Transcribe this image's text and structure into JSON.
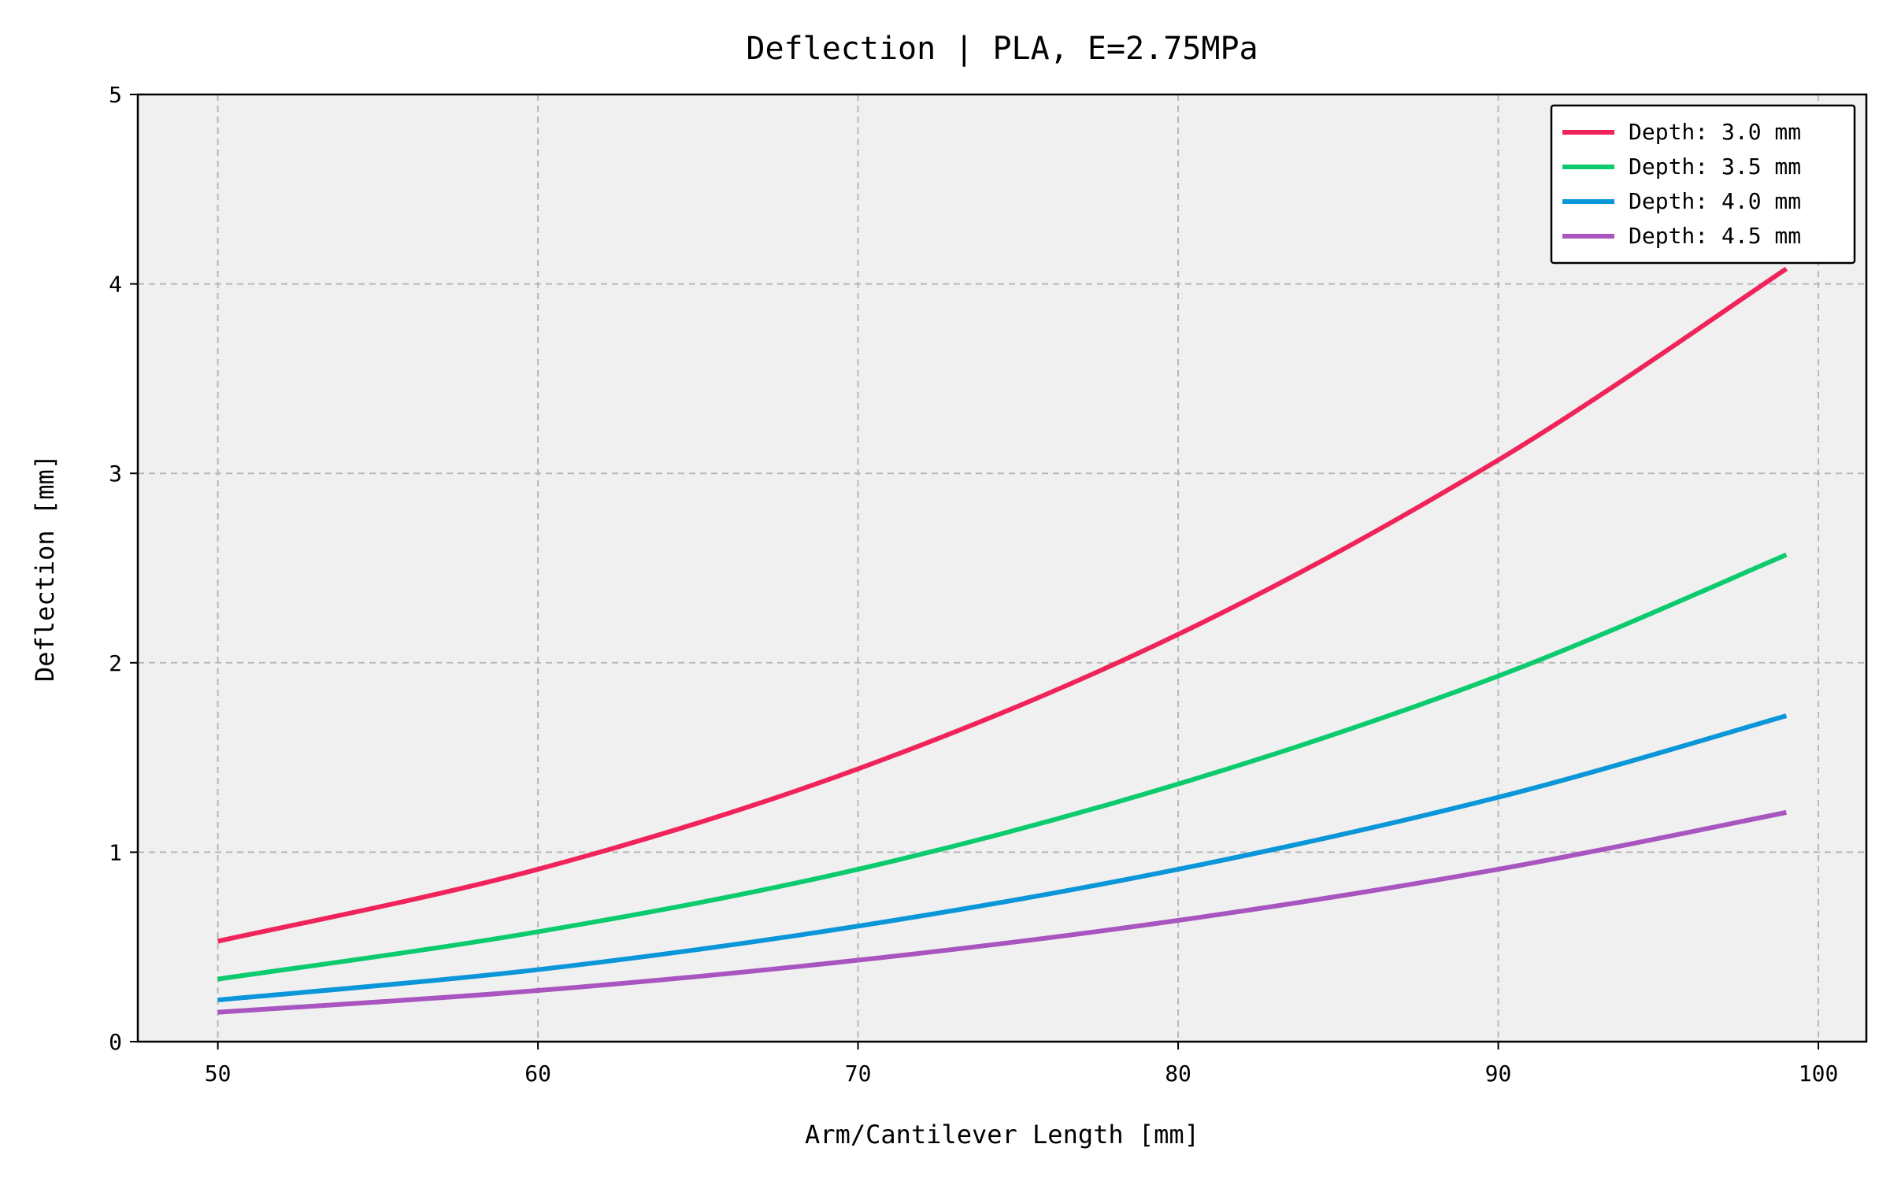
{
  "chart_data": {
    "type": "line",
    "title": "Deflection | PLA, E=2.75MPa",
    "xlabel": "Arm/Cantilever Length [mm]",
    "ylabel": "Deflection [mm]",
    "xlim": [
      47.5,
      101.5
    ],
    "ylim": [
      0,
      5
    ],
    "xticks": [
      50,
      60,
      70,
      80,
      90,
      100
    ],
    "yticks": [
      0,
      1,
      2,
      3,
      4,
      5
    ],
    "grid": true,
    "legend_position": "top-right",
    "x_range": [
      50,
      99
    ],
    "series": [
      {
        "name": "Depth: 3.0 mm",
        "color": "#f0245a",
        "x": [
          50,
          60,
          70,
          80,
          90,
          99
        ],
        "values": [
          0.53,
          0.91,
          1.44,
          2.15,
          3.07,
          4.08
        ]
      },
      {
        "name": "Depth: 3.5 mm",
        "color": "#0ccb6e",
        "x": [
          50,
          60,
          70,
          80,
          90,
          99
        ],
        "values": [
          0.33,
          0.58,
          0.91,
          1.36,
          1.93,
          2.57
        ]
      },
      {
        "name": "Depth: 4.0 mm",
        "color": "#0a96d8",
        "x": [
          50,
          60,
          70,
          80,
          90,
          99
        ],
        "values": [
          0.22,
          0.38,
          0.61,
          0.91,
          1.29,
          1.72
        ]
      },
      {
        "name": "Depth: 4.5 mm",
        "color": "#a855c0",
        "x": [
          50,
          60,
          70,
          80,
          90,
          99
        ],
        "values": [
          0.155,
          0.27,
          0.43,
          0.64,
          0.91,
          1.21
        ]
      }
    ]
  }
}
